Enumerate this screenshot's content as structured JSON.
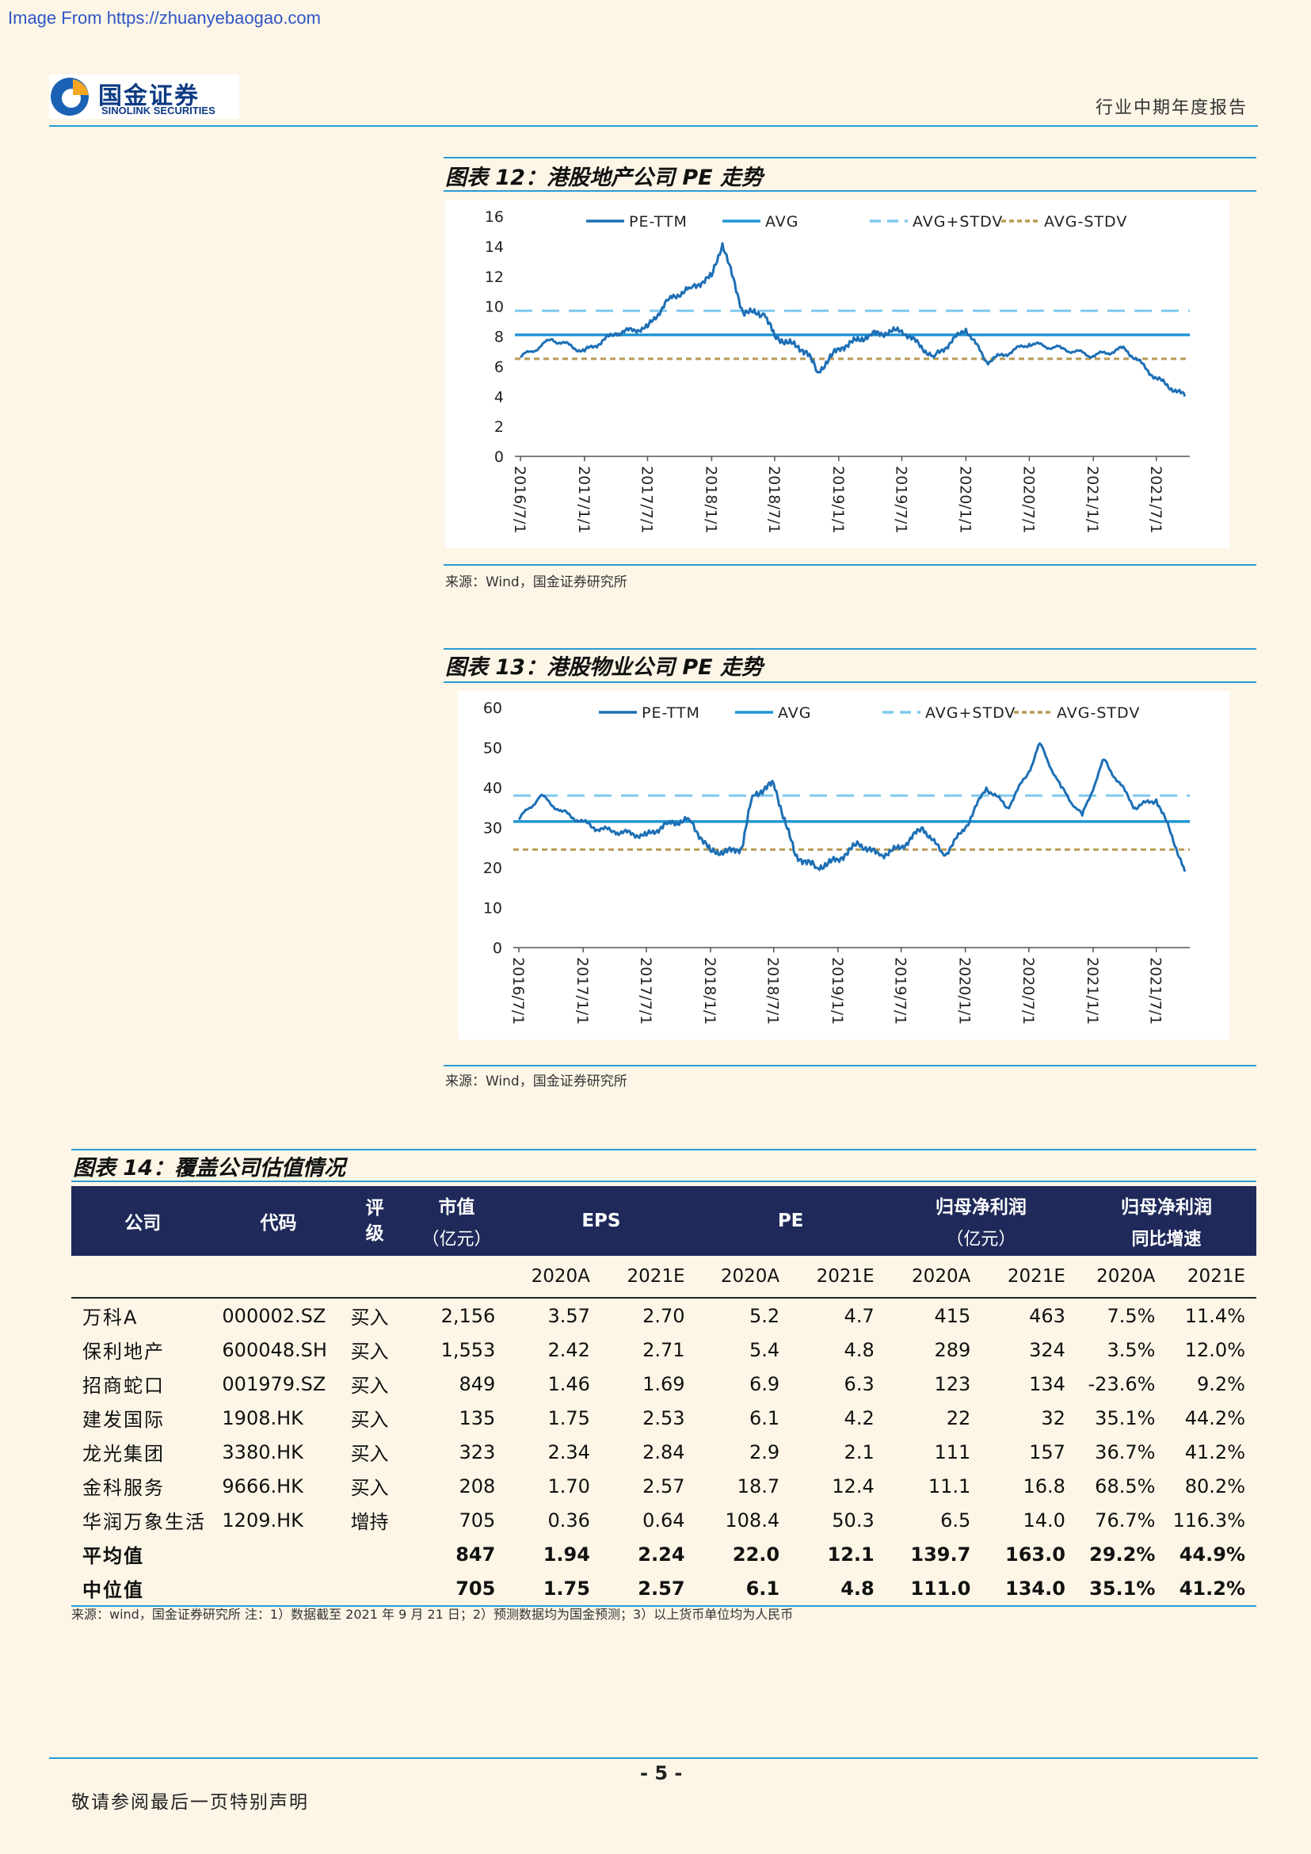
{
  "watermark": "Image From https://zhuanyebaogao.com",
  "header": {
    "logo_cn": "国金证券",
    "logo_en": "SINOLINK SECURITIES",
    "report_type": "行业中期年度报告"
  },
  "figure12": {
    "title": "图表 12：港股地产公司 PE 走势",
    "source": "来源：Wind，国金证券研究所",
    "chart_data": {
      "type": "line",
      "x_ticks": [
        "2016/7/1",
        "2017/1/1",
        "2017/7/1",
        "2018/1/1",
        "2018/7/1",
        "2019/1/1",
        "2019/7/1",
        "2020/1/1",
        "2020/7/1",
        "2021/1/1",
        "2021/7/1"
      ],
      "ylim": [
        0,
        16
      ],
      "y_ticks": [
        0,
        2,
        4,
        6,
        8,
        10,
        12,
        14,
        16
      ],
      "legend": [
        "PE-TTM",
        "AVG",
        "AVG+STDV",
        "AVG-STDV"
      ],
      "series": [
        {
          "name": "PE-TTM",
          "x": [
            "2016/7/1",
            "2016/10/1",
            "2017/1/1",
            "2017/4/1",
            "2017/7/1",
            "2017/9/1",
            "2017/11/1",
            "2018/1/1",
            "2018/2/1",
            "2018/4/1",
            "2018/6/1",
            "2018/7/1",
            "2018/10/1",
            "2018/11/1",
            "2019/1/1",
            "2019/4/1",
            "2019/7/1",
            "2019/10/1",
            "2020/1/1",
            "2020/3/1",
            "2020/7/1",
            "2020/10/1",
            "2021/1/1",
            "2021/4/1",
            "2021/7/1",
            "2021/9/21"
          ],
          "values": [
            6.6,
            7.8,
            7.0,
            8.2,
            8.6,
            10.5,
            11.2,
            12.0,
            14.2,
            9.6,
            9.5,
            8.0,
            7.0,
            5.6,
            7.2,
            8.1,
            8.4,
            6.6,
            8.5,
            6.3,
            7.5,
            7.2,
            6.7,
            7.2,
            5.2,
            4.0
          ]
        },
        {
          "name": "AVG",
          "values": [
            8.1
          ]
        },
        {
          "name": "AVG+STDV",
          "values": [
            9.7
          ]
        },
        {
          "name": "AVG-STDV",
          "values": [
            6.5
          ]
        }
      ]
    }
  },
  "figure13": {
    "title": "图表 13：港股物业公司 PE 走势",
    "source": "来源：Wind，国金证券研究所",
    "chart_data": {
      "type": "line",
      "x_ticks": [
        "2016/7/1",
        "2017/1/1",
        "2017/7/1",
        "2018/1/1",
        "2018/7/1",
        "2019/1/1",
        "2019/7/1",
        "2020/1/1",
        "2020/7/1",
        "2021/1/1",
        "2021/7/1"
      ],
      "ylim": [
        0,
        60
      ],
      "y_ticks": [
        0,
        10,
        20,
        30,
        40,
        50,
        60
      ],
      "legend": [
        "PE-TTM",
        "AVG",
        "AVG+STDV",
        "AVG-STDV"
      ],
      "series": [
        {
          "name": "PE-TTM",
          "x": [
            "2016/7/1",
            "2016/9/1",
            "2016/11/1",
            "2017/2/1",
            "2017/4/1",
            "2017/7/1",
            "2017/9/1",
            "2017/11/1",
            "2018/1/1",
            "2018/3/1",
            "2018/4/1",
            "2018/5/1",
            "2018/7/1",
            "2018/9/1",
            "2018/11/1",
            "2019/1/1",
            "2019/3/1",
            "2019/5/1",
            "2019/7/1",
            "2019/9/1",
            "2019/11/1",
            "2020/1/1",
            "2020/3/1",
            "2020/5/1",
            "2020/7/1",
            "2020/8/1",
            "2020/10/1",
            "2020/12/1",
            "2021/2/1",
            "2021/5/1",
            "2021/7/1",
            "2021/8/15",
            "2021/9/21"
          ],
          "values": [
            32,
            38,
            34,
            30,
            29,
            28,
            31,
            32,
            24,
            24,
            25,
            38,
            41,
            23,
            20,
            22,
            26,
            23,
            25,
            30,
            23,
            30,
            40,
            35,
            44,
            51,
            40,
            33,
            47,
            35,
            37,
            28,
            19
          ]
        },
        {
          "name": "AVG",
          "values": [
            31.5
          ]
        },
        {
          "name": "AVG+STDV",
          "values": [
            38.0
          ]
        },
        {
          "name": "AVG-STDV",
          "values": [
            24.5
          ]
        }
      ]
    }
  },
  "figure14": {
    "title": "图表 14：覆盖公司估值情况",
    "headers": {
      "company": "公司",
      "code": "代码",
      "rating": "评级",
      "mktcap": "市值",
      "mktcap_unit": "（亿元）",
      "eps": "EPS",
      "pe": "PE",
      "np": "归母净利润",
      "np_unit": "（亿元）",
      "np_growth": "归母净利润",
      "np_growth_2": "同比增速"
    },
    "subheaders": [
      "2020A",
      "2021E",
      "2020A",
      "2021E",
      "2020A",
      "2021E",
      "2020A",
      "2021E"
    ],
    "rows": [
      [
        "万科A",
        "000002.SZ",
        "买入",
        "2,156",
        "3.57",
        "2.70",
        "5.2",
        "4.7",
        "415",
        "463",
        "7.5%",
        "11.4%"
      ],
      [
        "保利地产",
        "600048.SH",
        "买入",
        "1,553",
        "2.42",
        "2.71",
        "5.4",
        "4.8",
        "289",
        "324",
        "3.5%",
        "12.0%"
      ],
      [
        "招商蛇口",
        "001979.SZ",
        "买入",
        "849",
        "1.46",
        "1.69",
        "6.9",
        "6.3",
        "123",
        "134",
        "-23.6%",
        "9.2%"
      ],
      [
        "建发国际",
        "1908.HK",
        "买入",
        "135",
        "1.75",
        "2.53",
        "6.1",
        "4.2",
        "22",
        "32",
        "35.1%",
        "44.2%"
      ],
      [
        "龙光集团",
        "3380.HK",
        "买入",
        "323",
        "2.34",
        "2.84",
        "2.9",
        "2.1",
        "111",
        "157",
        "36.7%",
        "41.2%"
      ],
      [
        "金科服务",
        "9666.HK",
        "买入",
        "208",
        "1.70",
        "2.57",
        "18.7",
        "12.4",
        "11.1",
        "16.8",
        "68.5%",
        "80.2%"
      ],
      [
        "华润万象生活",
        "1209.HK",
        "增持",
        "705",
        "0.36",
        "0.64",
        "108.4",
        "50.3",
        "6.5",
        "14.0",
        "76.7%",
        "116.3%"
      ]
    ],
    "summary_rows": [
      [
        "平均值",
        "",
        "",
        "847",
        "1.94",
        "2.24",
        "22.0",
        "12.1",
        "139.7",
        "163.0",
        "29.2%",
        "44.9%"
      ],
      [
        "中位值",
        "",
        "",
        "705",
        "1.75",
        "2.57",
        "6.1",
        "4.8",
        "111.0",
        "134.0",
        "35.1%",
        "41.2%"
      ]
    ],
    "note": "来源：wind，国金证券研究所 注：1）数据截至 2021 年 9 月 21 日；2）预测数据均为国金预测；3）以上货币单位均为人民币"
  },
  "footer": {
    "page_number": "- 5 -",
    "disclaimer": "敬请参阅最后一页特别声明"
  },
  "colors": {
    "pe_ttm": "#1d6fb5",
    "avg": "#2196d3",
    "avg_plus": "#7ec8ee",
    "avg_minus": "#b89a55",
    "table_header_bg": "#1f2a5a",
    "rule": "#2a9bd6"
  }
}
